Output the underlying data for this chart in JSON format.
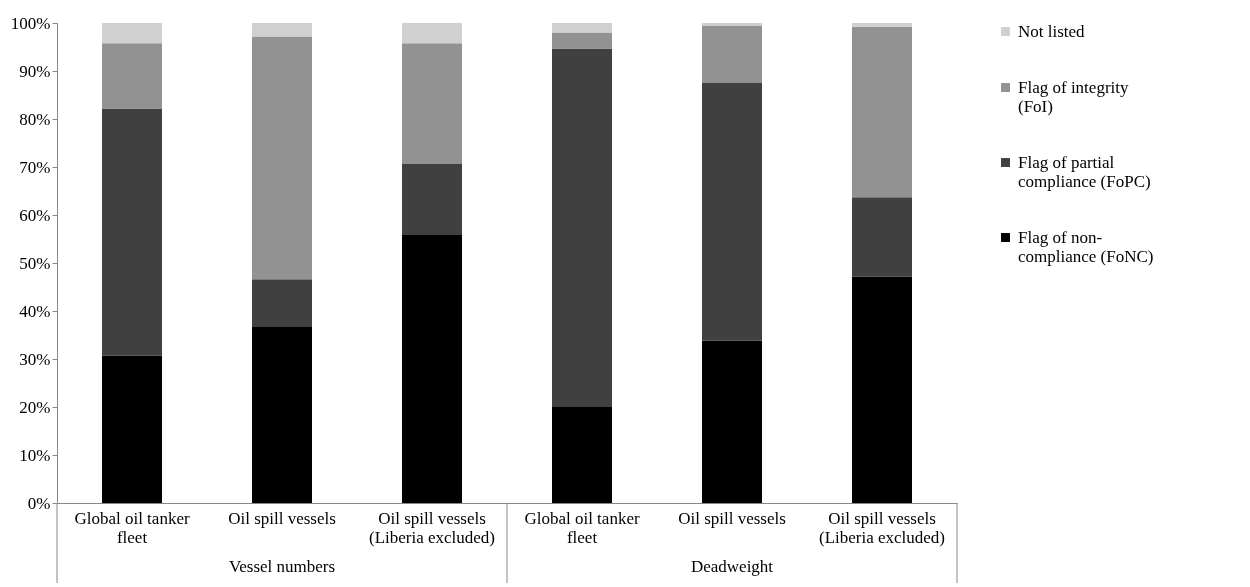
{
  "chart_data": {
    "type": "bar",
    "stacked": true,
    "categories": [
      "Global oil tanker fleet",
      "Oil spill vessels",
      "Oil spill vessels (Liberia excluded)",
      "Global oil tanker fleet",
      "Oil spill vessels",
      "Oil spill vessels (Liberia excluded)"
    ],
    "series": [
      {
        "name": "Flag of non-compliance (FoNC)",
        "color": "#000000",
        "values": [
          30.7,
          36.8,
          56.0,
          20.0,
          33.8,
          47.2
        ]
      },
      {
        "name": "Flag of partial compliance (FoPC)",
        "color": "#404040",
        "values": [
          51.5,
          9.8,
          14.6,
          74.7,
          53.7,
          16.5
        ]
      },
      {
        "name": "Flag of integrity (FoI)",
        "color": "#929292",
        "values": [
          13.6,
          50.6,
          25.2,
          3.3,
          12.0,
          35.5
        ]
      },
      {
        "name": "Not listed",
        "color": "#d0d0d0",
        "values": [
          4.2,
          2.8,
          4.2,
          2.0,
          0.5,
          0.8
        ]
      }
    ],
    "ylim": [
      0,
      100
    ],
    "yticks": [
      {
        "value": 0,
        "label": "0%"
      },
      {
        "value": 10,
        "label": "10%"
      },
      {
        "value": 20,
        "label": "20%"
      },
      {
        "value": 30,
        "label": "30%"
      },
      {
        "value": 40,
        "label": "40%"
      },
      {
        "value": 50,
        "label": "50%"
      },
      {
        "value": 60,
        "label": "60%"
      },
      {
        "value": 70,
        "label": "70%"
      },
      {
        "value": 80,
        "label": "80%"
      },
      {
        "value": 90,
        "label": "90%"
      },
      {
        "value": 100,
        "label": "100%"
      }
    ],
    "grid": false,
    "legend": "right",
    "annotations": [
      "Vessel numbers",
      "Deadweight"
    ]
  }
}
